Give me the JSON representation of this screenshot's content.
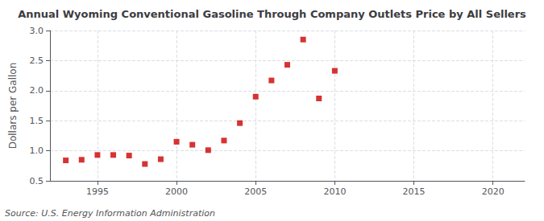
{
  "chart_data": {
    "type": "scatter",
    "title": "Annual Wyoming Conventional Gasoline Through Company Outlets Price by All Sellers",
    "ylabel": "Dollars per Gallon",
    "annotations": [
      "Source: U.S. Energy Information Administration"
    ],
    "x": [
      1993,
      1994,
      1995,
      1996,
      1997,
      1998,
      1999,
      2000,
      2001,
      2002,
      2003,
      2004,
      2005,
      2006,
      2007,
      2008,
      2009,
      2010
    ],
    "values": [
      0.84,
      0.85,
      0.93,
      0.93,
      0.92,
      0.78,
      0.86,
      1.15,
      1.1,
      1.01,
      1.17,
      1.46,
      1.9,
      2.17,
      2.43,
      2.85,
      1.87,
      2.33
    ],
    "color": "#cc0000",
    "marker": "square",
    "xlim": [
      1992,
      2022
    ],
    "xticks": [
      1995,
      2000,
      2005,
      2010,
      2015,
      2020
    ],
    "ylim": [
      0.5,
      3.0
    ],
    "yticks": [
      0.5,
      {
        "value": 1.0,
        "label": "1.0"
      },
      1.5,
      {
        "value": 2.0,
        "label": "2.0"
      },
      2.5,
      {
        "value": 3.0,
        "label": "3.0"
      }
    ],
    "grid": true
  }
}
